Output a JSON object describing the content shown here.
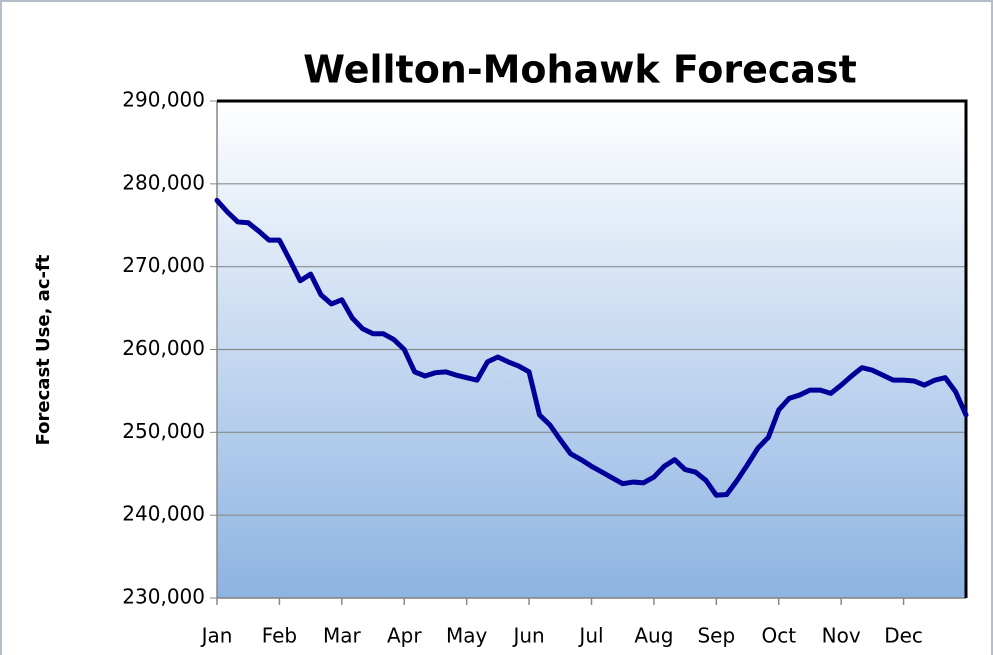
{
  "chart_data": {
    "type": "line",
    "title": "Wellton-Mohawk Forecast",
    "ylabel": "Forecast Use, ac-ft",
    "categories": [
      "Jan",
      null,
      null,
      null,
      null,
      null,
      "Feb",
      null,
      null,
      null,
      null,
      null,
      "Mar",
      null,
      null,
      null,
      null,
      null,
      "Apr",
      null,
      null,
      null,
      null,
      null,
      "May",
      null,
      null,
      null,
      null,
      null,
      "Jun",
      null,
      null,
      null,
      null,
      null,
      "Jul",
      null,
      null,
      null,
      null,
      null,
      "Aug",
      null,
      null,
      null,
      null,
      null,
      "Sep",
      null,
      null,
      null,
      null,
      null,
      "Oct",
      null,
      null,
      null,
      null,
      null,
      "Nov",
      null,
      null,
      null,
      null,
      null,
      "Dec",
      null,
      null,
      null,
      null,
      null,
      null
    ],
    "values": [
      278000,
      276600,
      275400,
      275300,
      274300,
      273200,
      273200,
      270800,
      268300,
      269100,
      266600,
      265500,
      266000,
      263800,
      262500,
      261900,
      261900,
      261200,
      260000,
      257300,
      256800,
      257200,
      257300,
      256900,
      256600,
      256300,
      258500,
      259100,
      258500,
      258000,
      257300,
      252100,
      250900,
      249100,
      247400,
      246700,
      245900,
      245200,
      244500,
      243800,
      244000,
      243900,
      244600,
      245900,
      246700,
      245500,
      245200,
      244200,
      242400,
      242500,
      244200,
      246100,
      248100,
      249400,
      252700,
      254100,
      254500,
      255100,
      255100,
      254700,
      255700,
      256800,
      257800,
      257500,
      256900,
      256300,
      256300,
      256200,
      255700,
      256300,
      256600,
      254900,
      252100
    ],
    "color": "#000099",
    "ylim": [
      230000,
      290000
    ],
    "yticks": [
      {
        "value": 230000,
        "label": "230,000"
      },
      {
        "value": 240000,
        "label": "240,000"
      },
      {
        "value": 250000,
        "label": "250,000"
      },
      {
        "value": 260000,
        "label": "260,000"
      },
      {
        "value": 270000,
        "label": "270,000"
      },
      {
        "value": 280000,
        "label": "280,000"
      },
      {
        "value": 290000,
        "label": "290,000"
      }
    ],
    "grid": true
  }
}
